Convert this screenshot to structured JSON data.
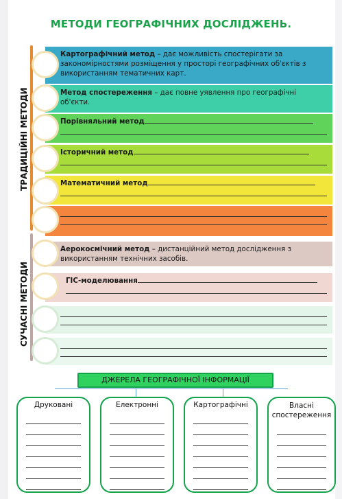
{
  "title": "МЕТОДИ ГЕОГРАФІЧНИХ ДОСЛІДЖЕНЬ.",
  "side_labels": {
    "traditional": "ТРАДИЦІЙНІ МЕТОДИ",
    "modern": "СУЧАСНІ МЕТОДИ"
  },
  "traditional_methods": [
    {
      "term": "Картографічний метод",
      "text": " – дає можливість спостерігати за закономірностями розміщення у просторі географічних об'єктів з використанням тематичних карт.",
      "color": "#3aa8c7"
    },
    {
      "term": "Метод спостереження",
      "text": " – дає повне уявлення про географічні об'єкти.",
      "color": "#3fcfa8"
    },
    {
      "term": "Порівняльний метод",
      "text": "",
      "color": "#5fd35a"
    },
    {
      "term": "Історичний метод",
      "text": "",
      "color": "#a7dc3a"
    },
    {
      "term": "Математичний метод",
      "text": "",
      "color": "#f1e639"
    },
    {
      "term": "",
      "text": "",
      "color": "#f3853f"
    }
  ],
  "modern_methods": [
    {
      "term": "Аерокосмічний метод",
      "text": " – дистанційний метод дослідження з використанням технічних засобів.",
      "color": "#dcc9c4"
    },
    {
      "term": "ГІС-моделювання",
      "text": "",
      "color": "#f0d7d2"
    },
    {
      "term": "",
      "text": "",
      "color": "#e3f4e8"
    },
    {
      "term": "",
      "text": "",
      "color": "#eaf7ee"
    }
  ],
  "sources": {
    "title": "ДЖЕРЕЛА ГЕОГРАФІЧНОЇ ІНФОРМАЦІЇ",
    "cards": [
      {
        "label": "Друковані"
      },
      {
        "label": "Електронні"
      },
      {
        "label": "Картографічні"
      },
      {
        "label": "Власні спостереження"
      }
    ]
  }
}
